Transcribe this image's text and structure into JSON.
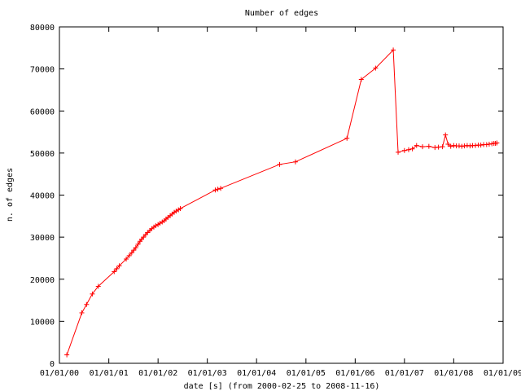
{
  "chart_data": {
    "type": "line",
    "title": "Number of edges",
    "xlabel": "date [s] (from 2000-02-25 to 2008-11-16)",
    "ylabel": "n. of edges",
    "x_scale": "time",
    "xlim": [
      "2000-01-01",
      "2009-01-01"
    ],
    "ylim": [
      0,
      80000
    ],
    "x_ticks": [
      "2000-01-01",
      "2001-01-01",
      "2002-01-01",
      "2003-01-01",
      "2004-01-01",
      "2005-01-01",
      "2006-01-01",
      "2007-01-01",
      "2008-01-01",
      "2009-01-01"
    ],
    "x_tick_labels": [
      "01/01/00",
      "01/01/01",
      "01/01/02",
      "01/01/03",
      "01/01/04",
      "01/01/05",
      "01/01/06",
      "01/01/07",
      "01/01/08",
      "01/01/09"
    ],
    "y_ticks": [
      0,
      10000,
      20000,
      30000,
      40000,
      50000,
      60000,
      70000,
      80000
    ],
    "y_tick_labels": [
      "0",
      "10000",
      "20000",
      "30000",
      "40000",
      "50000",
      "60000",
      "70000",
      "80000"
    ],
    "grid": false,
    "series_color": "#ff0000",
    "marker": "plus",
    "series": [
      {
        "x": [
          "2000-02-25",
          "2000-06-15",
          "2000-07-20",
          "2000-09-01",
          "2000-10-15",
          "2001-02-10",
          "2001-03-01",
          "2001-03-20",
          "2001-05-10",
          "2001-06-01",
          "2001-06-20",
          "2001-07-05",
          "2001-07-20",
          "2001-08-05",
          "2001-08-20",
          "2001-09-01",
          "2001-09-15",
          "2001-10-01",
          "2001-10-15",
          "2001-11-01",
          "2001-11-15",
          "2001-12-01",
          "2001-12-15",
          "2002-01-01",
          "2002-01-15",
          "2002-02-01",
          "2002-02-15",
          "2002-03-01",
          "2002-03-15",
          "2002-04-01",
          "2002-04-15",
          "2002-05-01",
          "2002-05-15",
          "2002-06-01",
          "2002-06-15",
          "2003-03-01",
          "2003-03-20",
          "2003-04-10",
          "2004-06-20",
          "2004-10-15",
          "2005-11-01",
          "2006-02-15",
          "2006-06-01",
          "2006-10-10",
          "2006-11-15",
          "2007-01-01",
          "2007-02-01",
          "2007-03-01",
          "2007-04-01",
          "2007-05-15",
          "2007-07-01",
          "2007-08-15",
          "2007-09-10",
          "2007-10-10",
          "2007-11-01",
          "2007-11-20",
          "2007-12-10",
          "2008-01-01",
          "2008-01-20",
          "2008-02-10",
          "2008-03-01",
          "2008-03-20",
          "2008-04-10",
          "2008-05-01",
          "2008-05-20",
          "2008-06-10",
          "2008-07-01",
          "2008-07-20",
          "2008-08-10",
          "2008-09-01",
          "2008-09-20",
          "2008-10-10",
          "2008-10-25",
          "2008-11-05",
          "2008-11-16"
        ],
        "y": [
          2000,
          12000,
          14000,
          16500,
          18300,
          21800,
          22500,
          23200,
          24800,
          25600,
          26300,
          26900,
          27500,
          28300,
          29000,
          29500,
          30000,
          30600,
          31100,
          31600,
          32000,
          32400,
          32700,
          33000,
          33300,
          33600,
          33900,
          34300,
          34700,
          35100,
          35500,
          35900,
          36200,
          36500,
          36800,
          41200,
          41400,
          41600,
          47300,
          47900,
          53500,
          67500,
          70200,
          74500,
          50200,
          50600,
          50800,
          51000,
          51800,
          51500,
          51600,
          51300,
          51400,
          51500,
          54300,
          52100,
          51600,
          51800,
          51700,
          51700,
          51600,
          51700,
          51800,
          51700,
          51800,
          51800,
          51900,
          51900,
          52000,
          52000,
          52100,
          52200,
          52300,
          52300,
          52400
        ]
      }
    ]
  }
}
